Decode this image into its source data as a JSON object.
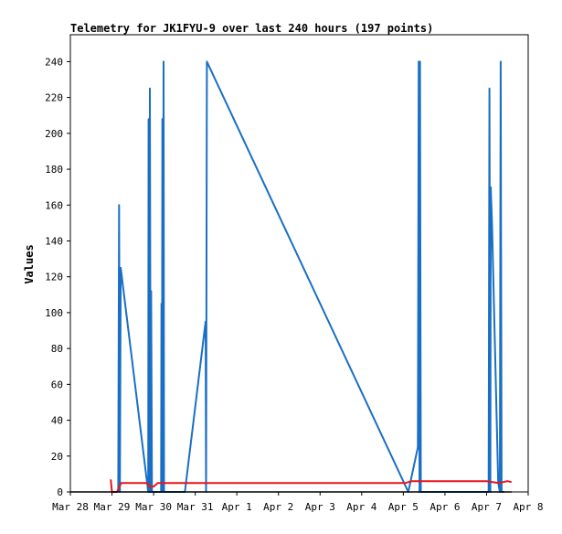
{
  "chart_data": {
    "type": "line",
    "title": "Telemetry for JK1FYU-9 over last 240 hours (197 points)",
    "xlabel": "",
    "ylabel": "Values",
    "xlim": [
      0,
      11
    ],
    "ylim": [
      0,
      255
    ],
    "x_ticks": [
      "Mar 28",
      "Mar 29",
      "Mar 30",
      "Mar 31",
      "Apr 1",
      "Apr 2",
      "Apr 3",
      "Apr 4",
      "Apr 5",
      "Apr 6",
      "Apr 7",
      "Apr 8"
    ],
    "y_ticks": [
      0,
      20,
      40,
      60,
      80,
      100,
      120,
      140,
      160,
      180,
      200,
      220,
      240
    ],
    "grid": false,
    "colors": {
      "series_blue": "#1a6fc4",
      "series_red": "#e8141c",
      "baseline": "#000000"
    },
    "series": [
      {
        "color": "#1a6fc4",
        "points": [
          [
            1.15,
            0
          ],
          [
            1.17,
            160
          ],
          [
            1.19,
            0
          ],
          [
            1.21,
            125
          ],
          [
            1.87,
            0
          ],
          [
            1.88,
            208
          ],
          [
            1.9,
            0
          ],
          [
            1.91,
            225
          ],
          [
            1.93,
            0
          ],
          [
            1.94,
            112
          ],
          [
            1.96,
            0
          ],
          [
            2.18,
            0
          ],
          [
            2.19,
            105
          ],
          [
            2.2,
            0
          ],
          [
            2.21,
            208
          ],
          [
            2.22,
            0
          ],
          [
            2.24,
            240
          ],
          [
            2.25,
            0
          ],
          [
            2.75,
            0
          ],
          [
            3.25,
            95
          ],
          [
            3.26,
            0
          ],
          [
            3.28,
            240
          ],
          [
            8.12,
            0
          ],
          [
            8.35,
            25
          ],
          [
            8.37,
            240
          ],
          [
            8.39,
            0
          ],
          [
            8.4,
            240
          ],
          [
            8.42,
            0
          ],
          [
            10.05,
            0
          ],
          [
            10.07,
            225
          ],
          [
            10.09,
            0
          ],
          [
            10.1,
            170
          ],
          [
            10.13,
            150
          ],
          [
            10.28,
            5
          ],
          [
            10.32,
            0
          ],
          [
            10.34,
            240
          ],
          [
            10.36,
            0
          ],
          [
            10.42,
            0
          ]
        ]
      },
      {
        "color": "#e8141c",
        "points": [
          [
            0.97,
            7
          ],
          [
            1.0,
            0
          ],
          [
            1.12,
            0
          ],
          [
            1.22,
            5
          ],
          [
            1.85,
            5
          ],
          [
            1.9,
            3
          ],
          [
            2.0,
            3
          ],
          [
            2.1,
            5
          ],
          [
            2.75,
            5
          ],
          [
            3.5,
            5
          ],
          [
            8.05,
            5
          ],
          [
            8.2,
            6
          ],
          [
            10.0,
            6
          ],
          [
            10.3,
            5
          ],
          [
            10.5,
            6
          ],
          [
            10.6,
            5.5
          ]
        ]
      },
      {
        "color": "#000000",
        "points": [
          [
            0,
            0
          ],
          [
            10.6,
            0
          ]
        ]
      }
    ]
  }
}
